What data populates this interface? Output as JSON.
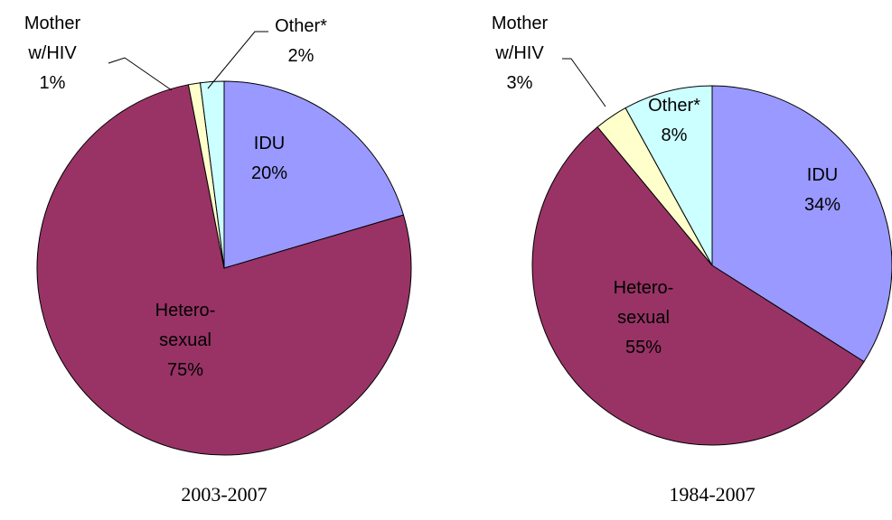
{
  "chart_data": [
    {
      "type": "pie",
      "subtitle": "2003-2007",
      "categories": [
        "IDU",
        "Hetero-sexual",
        "Mother w/HIV",
        "Other*"
      ],
      "values": [
        20,
        75,
        1,
        2
      ],
      "value_labels": [
        "20%",
        "75%",
        "1%",
        "2%"
      ],
      "colors": [
        "#9999ff",
        "#993366",
        "#ffffcc",
        "#ccffff"
      ]
    },
    {
      "type": "pie",
      "subtitle": "1984-2007",
      "categories": [
        "IDU",
        "Hetero-sexual",
        "Mother w/HIV",
        "Other*"
      ],
      "values": [
        34,
        55,
        3,
        8
      ],
      "value_labels": [
        "34%",
        "55%",
        "3%",
        "8%"
      ],
      "colors": [
        "#9999ff",
        "#993366",
        "#ffffcc",
        "#ccffff"
      ]
    }
  ]
}
